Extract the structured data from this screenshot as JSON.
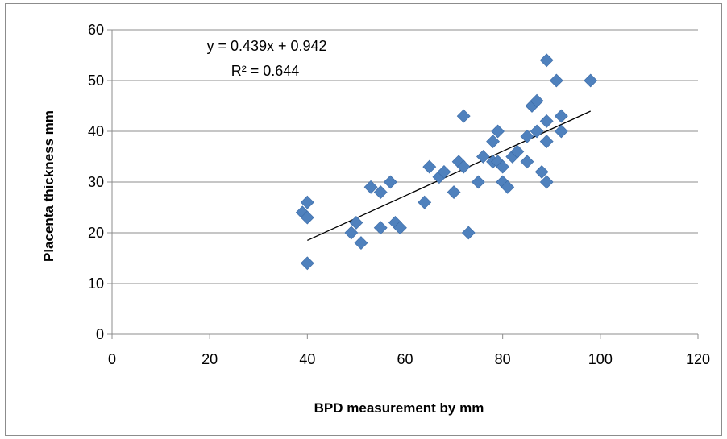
{
  "chart_data": {
    "type": "scatter",
    "xlabel": "BPD measurement by mm",
    "ylabel": "Placenta thickness mm",
    "xlim": [
      0,
      120
    ],
    "ylim": [
      0,
      60
    ],
    "x_ticks": [
      "0",
      "20",
      "40",
      "60",
      "80",
      "100",
      "120"
    ],
    "y_ticks": [
      "0",
      "10",
      "20",
      "30",
      "40",
      "50",
      "60"
    ],
    "grid": "horizontal",
    "marker": "diamond",
    "marker_color": "#4F81BD",
    "trendline": {
      "equation": "y = 0.439x + 0.942",
      "r_squared": "R² = 0.644",
      "slope": 0.439,
      "intercept": 0.942,
      "x_range": [
        40,
        98
      ],
      "color": "#000000"
    },
    "points": [
      [
        39,
        24
      ],
      [
        40,
        26
      ],
      [
        40,
        23
      ],
      [
        40,
        14
      ],
      [
        49,
        20
      ],
      [
        50,
        22
      ],
      [
        51,
        18
      ],
      [
        53,
        29
      ],
      [
        55,
        28
      ],
      [
        55,
        21
      ],
      [
        57,
        30
      ],
      [
        58,
        22
      ],
      [
        59,
        21
      ],
      [
        64,
        26
      ],
      [
        65,
        33
      ],
      [
        67,
        31
      ],
      [
        68,
        32
      ],
      [
        70,
        28
      ],
      [
        71,
        34
      ],
      [
        72,
        43
      ],
      [
        72,
        33
      ],
      [
        73,
        20
      ],
      [
        75,
        30
      ],
      [
        76,
        35
      ],
      [
        78,
        34
      ],
      [
        78,
        38
      ],
      [
        79,
        40
      ],
      [
        79,
        34
      ],
      [
        80,
        33
      ],
      [
        80,
        30
      ],
      [
        81,
        29
      ],
      [
        82,
        35
      ],
      [
        83,
        36
      ],
      [
        85,
        39
      ],
      [
        85,
        34
      ],
      [
        86,
        45
      ],
      [
        87,
        46
      ],
      [
        87,
        40
      ],
      [
        88,
        32
      ],
      [
        89,
        42
      ],
      [
        89,
        38
      ],
      [
        89,
        30
      ],
      [
        89,
        54
      ],
      [
        91,
        50
      ],
      [
        92,
        43
      ],
      [
        92,
        40
      ],
      [
        98,
        50
      ]
    ]
  }
}
